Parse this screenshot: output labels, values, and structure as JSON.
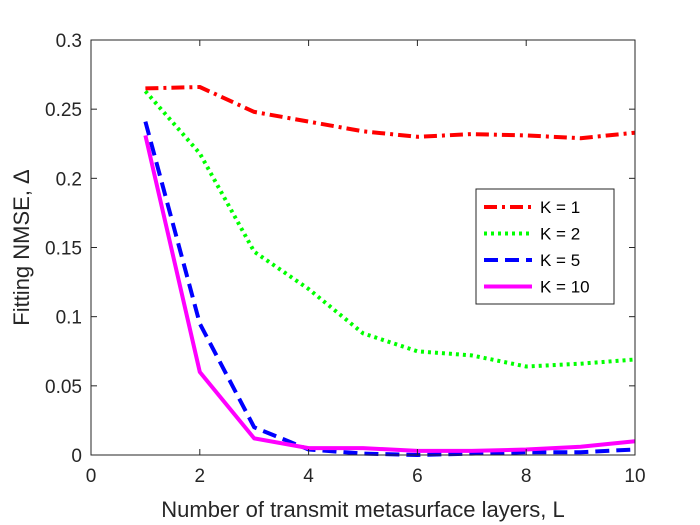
{
  "chart_data": {
    "type": "line",
    "title": "",
    "xlabel": "Number of transmit metasurface layers, L",
    "ylabel": "Fitting NMSE, Δ",
    "xlim": [
      0,
      10
    ],
    "ylim": [
      0,
      0.3
    ],
    "xticks": [
      "0",
      "2",
      "4",
      "6",
      "8",
      "10"
    ],
    "yticks": [
      "0",
      "0.05",
      "0.1",
      "0.15",
      "0.2",
      "0.25",
      "0.3"
    ],
    "grid": false,
    "legend_position": "center-right",
    "series": [
      {
        "name": "K = 1",
        "color": "#ff0000",
        "dash": "dash-dot",
        "x": [
          1,
          2,
          3,
          4,
          5,
          6,
          7,
          8,
          9,
          10
        ],
        "y": [
          0.265,
          0.266,
          0.248,
          0.241,
          0.234,
          0.23,
          0.232,
          0.231,
          0.229,
          0.233
        ]
      },
      {
        "name": "K = 2",
        "color": "#00ff00",
        "dash": "dotted",
        "x": [
          1,
          2,
          3,
          4,
          5,
          6,
          7,
          8,
          9,
          10
        ],
        "y": [
          0.263,
          0.218,
          0.147,
          0.12,
          0.088,
          0.075,
          0.072,
          0.064,
          0.066,
          0.069
        ]
      },
      {
        "name": "K = 5",
        "color": "#0000ff",
        "dash": "dashed",
        "x": [
          1,
          2,
          3,
          4,
          5,
          6,
          7,
          8,
          9,
          10
        ],
        "y": [
          0.241,
          0.095,
          0.02,
          0.004,
          0.001,
          0.0,
          0.001,
          0.002,
          0.002,
          0.004
        ]
      },
      {
        "name": "K = 10",
        "color": "#ff00ff",
        "dash": "solid",
        "x": [
          1,
          2,
          3,
          4,
          5,
          6,
          7,
          8,
          9,
          10
        ],
        "y": [
          0.231,
          0.06,
          0.012,
          0.005,
          0.005,
          0.003,
          0.003,
          0.004,
          0.006,
          0.01
        ]
      }
    ]
  }
}
